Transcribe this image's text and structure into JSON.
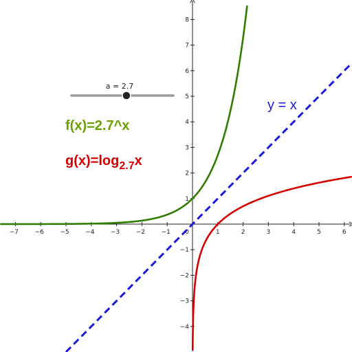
{
  "slider": {
    "label": "a = 2.7",
    "value": 2.7,
    "min": 0,
    "max": 5
  },
  "formulas": {
    "f": "f(x)=2.7^x",
    "g_prefix": "g(x)=log",
    "g_base": "2.7",
    "g_suffix": "x",
    "line": "y = x"
  },
  "colors": {
    "f": "#2e7d00",
    "g": "#d40000",
    "line": "#1a1adc",
    "f_text": "#6aa000",
    "g_text": "#d40000",
    "line_text": "#1a1adc",
    "slider_track": "#999999",
    "slider_knob": "#222222",
    "axis": "#222222"
  },
  "chart_data": {
    "type": "line",
    "base": 2.7,
    "xlim": [
      -7.6,
      6.3
    ],
    "ylim": [
      -5.0,
      8.8
    ],
    "x_ticks": [
      -7,
      -6,
      -5,
      -4,
      -3,
      -2,
      -1,
      1,
      2,
      3,
      4,
      5,
      6
    ],
    "y_ticks": [
      -4,
      -3,
      -2,
      -1,
      1,
      2,
      3,
      4,
      5,
      6,
      7,
      8
    ],
    "origin_label": "0",
    "grid": false,
    "series": [
      {
        "name": "f(x)=2.7^x",
        "function": "exp",
        "x_range": [
          -7.6,
          2.16
        ]
      },
      {
        "name": "g(x)=log2.7x",
        "function": "log",
        "x_range": [
          0.0074,
          6.3
        ]
      },
      {
        "name": "y = x",
        "function": "identity",
        "style": "dashed",
        "x_range": [
          -5.0,
          6.3
        ]
      }
    ]
  }
}
